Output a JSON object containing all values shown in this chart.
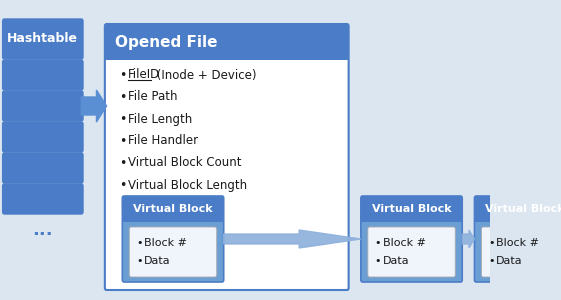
{
  "bg_color": "#dce6f1",
  "dark_blue": "#4a7cc7",
  "medium_blue": "#5b8fd4",
  "light_blue_box": "#6b9fd4",
  "inner_white": "#f0f4fb",
  "white": "#ffffff",
  "text_dark": "#1a1a1a",
  "hashtable_label": "Hashtable",
  "opened_file_label": "Opened File",
  "opened_file_bullets": [
    "File Path",
    "File Length",
    "File Handler",
    "Virtual Block Count",
    "Virtual Block Length"
  ],
  "fileid_text": "FileID",
  "fileid_rest": " (Inode + Device)",
  "virtual_block_label": "Virtual Block",
  "virtual_block_bullets": [
    "Block #",
    "Data"
  ],
  "dots_label": "...",
  "figsize": [
    5.61,
    3.0
  ],
  "dpi": 100
}
